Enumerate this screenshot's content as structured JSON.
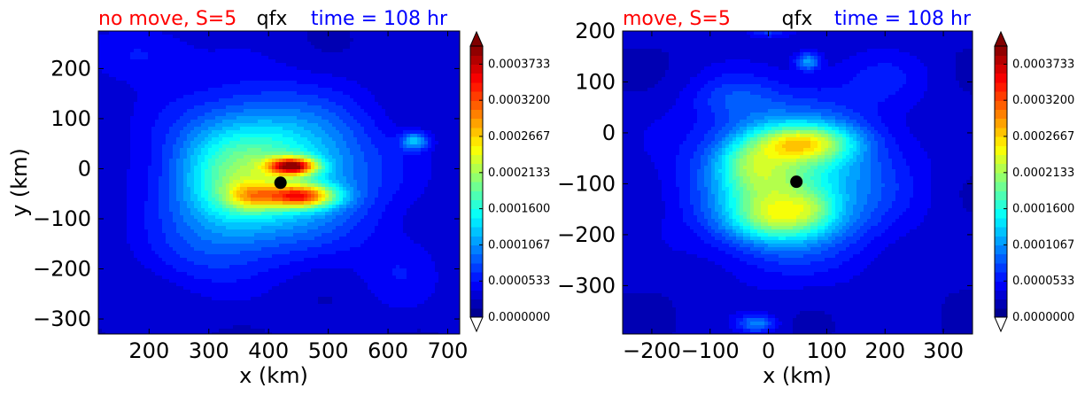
{
  "colors": {
    "left_title": "#ff0000",
    "center_title": "#000000",
    "right_title": "#0000ff",
    "storm_center": "#000000"
  },
  "chart_data": [
    {
      "type": "heatmap",
      "variable": "qfx",
      "title_left": "no move, S=5",
      "title_center": "qfx",
      "title_right": "time = 108 hr",
      "xlabel": "x (km)",
      "ylabel": "y (km)",
      "xlim": [
        115,
        720
      ],
      "ylim": [
        -330,
        275
      ],
      "xticks": [
        200,
        300,
        400,
        500,
        600,
        700
      ],
      "xtick_labels": [
        "200",
        "300",
        "400",
        "500",
        "600",
        "700"
      ],
      "yticks": [
        200,
        100,
        0,
        -100,
        -200,
        -300
      ],
      "ytick_labels": [
        "200",
        "100",
        "0",
        "−100",
        "−200",
        "−300"
      ],
      "storm_center": {
        "x": 420,
        "y": -28
      },
      "features": [
        {
          "x": 405,
          "y": -5,
          "peak": 0.00015,
          "sx": 110,
          "sy": 95
        },
        {
          "x": 330,
          "y": -40,
          "peak": 5e-05,
          "sx": 60,
          "sy": 90
        },
        {
          "x": 440,
          "y": 5,
          "peak": 0.00024,
          "sx": 28,
          "sy": 12
        },
        {
          "x": 455,
          "y": -55,
          "peak": 0.0002,
          "sx": 40,
          "sy": 16
        },
        {
          "x": 370,
          "y": -55,
          "peak": 9e-05,
          "sx": 30,
          "sy": 20
        },
        {
          "x": 645,
          "y": 55,
          "peak": 9e-05,
          "sx": 16,
          "sy": 12
        },
        {
          "x": 190,
          "y": 230,
          "peak": 3e-05,
          "sx": 60,
          "sy": 40
        },
        {
          "x": 260,
          "y": -180,
          "peak": 2e-05,
          "sx": 60,
          "sy": 50
        },
        {
          "x": 620,
          "y": -200,
          "peak": 2e-05,
          "sx": 50,
          "sy": 60
        }
      ],
      "colorbar": {
        "min": 0.0,
        "max": 0.0004,
        "tick_values": [
          0.0,
          5.33e-05,
          0.0001067,
          0.00016,
          0.0002133,
          0.0002667,
          0.00032,
          0.0003733
        ],
        "tick_labels": [
          "0.0000000",
          "0.0000533",
          "0.0001067",
          "0.0001600",
          "0.0002133",
          "0.0002667",
          "0.0003200",
          "0.0003733"
        ],
        "extend": "both"
      }
    },
    {
      "type": "heatmap",
      "variable": "qfx",
      "title_left": "move, S=5",
      "title_center": "qfx",
      "title_right": "time = 108 hr",
      "xlabel": "x (km)",
      "ylabel": "",
      "xlim": [
        -250,
        350
      ],
      "ylim": [
        -395,
        200
      ],
      "xticks": [
        -200,
        -100,
        0,
        100,
        200,
        300
      ],
      "xtick_labels": [
        "−200",
        "−100",
        "0",
        "100",
        "200",
        "300"
      ],
      "yticks": [
        200,
        100,
        0,
        -100,
        -200,
        -300
      ],
      "ytick_labels": [
        "200",
        "100",
        "0",
        "−100",
        "−200",
        "−300"
      ],
      "storm_center": {
        "x": 48,
        "y": -96
      },
      "features": [
        {
          "x": 40,
          "y": -90,
          "peak": 0.00013,
          "sx": 110,
          "sy": 100
        },
        {
          "x": 0,
          "y": -110,
          "peak": 6e-05,
          "sx": 50,
          "sy": 60
        },
        {
          "x": 60,
          "y": -20,
          "peak": 0.00013,
          "sx": 60,
          "sy": 25
        },
        {
          "x": 20,
          "y": -170,
          "peak": 8e-05,
          "sx": 60,
          "sy": 30
        },
        {
          "x": -40,
          "y": -60,
          "peak": 5e-05,
          "sx": 35,
          "sy": 30
        },
        {
          "x": 75,
          "y": -145,
          "peak": 4e-05,
          "sx": 30,
          "sy": 25
        },
        {
          "x": 68,
          "y": 140,
          "peak": 8e-05,
          "sx": 14,
          "sy": 12
        },
        {
          "x": -20,
          "y": -375,
          "peak": 7e-05,
          "sx": 22,
          "sy": 12
        },
        {
          "x": -60,
          "y": 70,
          "peak": 3e-05,
          "sx": 50,
          "sy": 30
        },
        {
          "x": 200,
          "y": 110,
          "peak": 2e-05,
          "sx": 60,
          "sy": 40
        },
        {
          "x": 0,
          "y": 200,
          "peak": 4e-05,
          "sx": 25,
          "sy": 10
        }
      ],
      "colorbar": {
        "min": 0.0,
        "max": 0.0004,
        "tick_values": [
          0.0,
          5.33e-05,
          0.0001067,
          0.00016,
          0.0002133,
          0.0002667,
          0.00032,
          0.0003733
        ],
        "tick_labels": [
          "0.0000000",
          "0.0000533",
          "0.0001067",
          "0.0001600",
          "0.0002133",
          "0.0002667",
          "0.0003200",
          "0.0003733"
        ],
        "extend": "both"
      }
    }
  ]
}
